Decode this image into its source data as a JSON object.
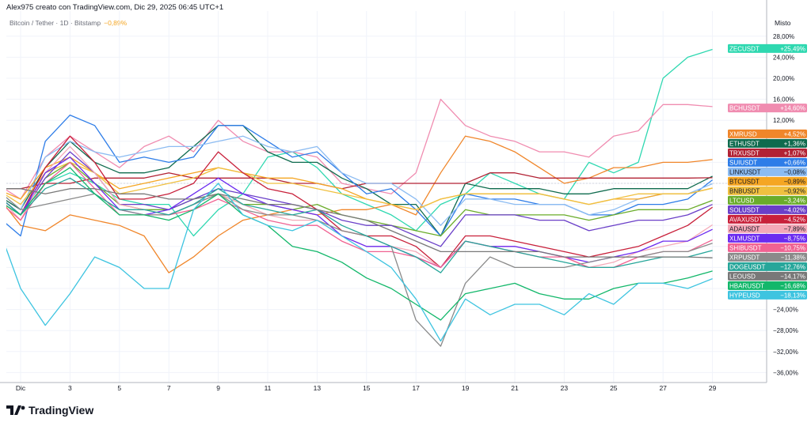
{
  "header": {
    "title": "Alex975 creato con TradingView.com, Dic 29, 2025 06:45 UTC+1",
    "symbol": "Bitcoin / Tether · 1D · Bitstamp",
    "change": "−0,89%"
  },
  "axis_mode": "Misto",
  "logo": "TradingView",
  "chart_data": {
    "type": "line",
    "x": [
      0,
      1,
      2,
      3,
      4,
      5,
      6,
      7,
      8,
      9,
      10,
      11,
      12,
      13,
      14,
      15,
      16,
      17,
      18,
      19,
      20,
      21,
      22,
      23,
      24,
      25,
      26,
      27,
      28,
      29
    ],
    "xtick_labels": [
      {
        "day": 1,
        "label": "Dic"
      },
      {
        "day": 3,
        "label": "3"
      },
      {
        "day": 5,
        "label": "5"
      },
      {
        "day": 7,
        "label": "7"
      },
      {
        "day": 9,
        "label": "9"
      },
      {
        "day": 11,
        "label": "11"
      },
      {
        "day": 13,
        "label": "13"
      },
      {
        "day": 15,
        "label": "15"
      },
      {
        "day": 17,
        "label": "17"
      },
      {
        "day": 19,
        "label": "19"
      },
      {
        "day": 21,
        "label": "21"
      },
      {
        "day": 23,
        "label": "23"
      },
      {
        "day": 25,
        "label": "25"
      },
      {
        "day": 27,
        "label": "27"
      },
      {
        "day": 29,
        "label": "29"
      }
    ],
    "ylim": [
      -38,
      30
    ],
    "yticks": [
      28,
      24,
      20,
      16,
      12,
      8,
      4,
      0,
      -4,
      -8,
      -12,
      -16,
      -20,
      -24,
      -28,
      -32,
      -36
    ],
    "ytick_labels": [
      "28,00%",
      "24,00%",
      "20,00%",
      "16,00%",
      "12,00%",
      "",
      "",
      "",
      "",
      "",
      "",
      "",
      "",
      "−24,00%",
      "−28,00%",
      "−32,00%",
      "−36,00%"
    ],
    "grid": true,
    "series": [
      {
        "name": "ZECUSDT",
        "label": "+25,49%",
        "color": "#2ed8b0",
        "values": [
          -3,
          -6,
          0,
          2,
          0,
          -3,
          -4,
          -4,
          -10,
          -5,
          -2,
          5,
          6,
          3,
          -2,
          -4,
          -6,
          -9,
          -4,
          -2,
          2,
          0,
          -2,
          -3,
          4,
          2,
          4,
          20,
          24,
          25.49
        ]
      },
      {
        "name": "BCHUSDT",
        "label": "+14,60%",
        "color": "#f08cb0",
        "values": [
          0,
          -3,
          5,
          9,
          6,
          3,
          7,
          9,
          6,
          12,
          8,
          6,
          6,
          5,
          0,
          -1,
          -2,
          2,
          16,
          11,
          9,
          8,
          6,
          6,
          5,
          9,
          10,
          15,
          15,
          14.6
        ]
      },
      {
        "name": "XMRUSD",
        "label": "+4,52%",
        "color": "#f0862a",
        "values": [
          -2,
          -8,
          -9,
          -6,
          -7,
          -8,
          -10,
          -17,
          -14,
          -10,
          -7,
          -6,
          -5,
          -6,
          -5,
          -5,
          -4,
          -6,
          2,
          9,
          8,
          6,
          3,
          0,
          1,
          3,
          3,
          4,
          4,
          4.52
        ]
      },
      {
        "name": "ETHUSDT",
        "label": "+1,36%",
        "color": "#0f6b4e",
        "values": [
          -2,
          -5,
          3,
          8,
          4,
          2,
          2,
          3,
          7,
          11,
          11,
          6,
          4,
          4,
          1,
          -1,
          -4,
          -4,
          -10,
          0,
          -1,
          -1,
          -1,
          -2,
          -2,
          -1,
          -1,
          -1,
          -1,
          1.36
        ]
      },
      {
        "name": "TRXUSDT",
        "label": "+1,07%",
        "color": "#b22234",
        "values": [
          -1,
          -1,
          0,
          0,
          1,
          1,
          1,
          2,
          1,
          1,
          1,
          1,
          0,
          0,
          -1,
          0,
          0,
          0,
          0,
          0,
          2,
          2,
          1,
          1,
          1,
          1,
          1,
          1,
          1,
          1.07
        ]
      },
      {
        "name": "SUIUSDT",
        "label": "+0,66%",
        "color": "#2e7de8",
        "values": [
          -6,
          -10,
          8,
          13,
          11,
          4,
          5,
          4,
          5,
          11,
          11,
          8,
          5,
          6,
          2,
          -2,
          -1,
          -5,
          -10,
          -2,
          -3,
          -3,
          -4,
          -4,
          -6,
          -6,
          -4,
          -4,
          -3,
          0.66
        ]
      },
      {
        "name": "LINKUSDT",
        "label": "−0,08%",
        "color": "#8cbcf2",
        "values": [
          -1,
          -5,
          5,
          8,
          6,
          5,
          6,
          7,
          7,
          8,
          9,
          7,
          6,
          7,
          2,
          0,
          0,
          -3,
          -8,
          -3,
          -3,
          -4,
          -4,
          -4,
          -6,
          -5,
          -3,
          -2,
          -2,
          -0.08
        ]
      },
      {
        "name": "BTCUSDT",
        "label": "−0,89%",
        "color": "#f5a623",
        "values": [
          -1,
          -3,
          3,
          5,
          2,
          -1,
          0,
          1,
          2,
          3,
          2,
          1,
          1,
          0,
          -1,
          -3,
          -4,
          -5,
          -3,
          -2,
          -2,
          -2,
          -2,
          -3,
          -4,
          -3,
          -3,
          -2,
          -2,
          -0.89
        ]
      },
      {
        "name": "BNBUSDT",
        "label": "−0,92%",
        "color": "#f0c040",
        "values": [
          -1,
          -4,
          2,
          4,
          2,
          -2,
          -1,
          0,
          1,
          3,
          2,
          0,
          0,
          -1,
          -2,
          -3,
          -4,
          -5,
          -3,
          -2,
          -2,
          -2,
          -2,
          -3,
          -4,
          -3,
          -2,
          -2,
          -2,
          -0.92
        ]
      },
      {
        "name": "LTCUSD",
        "label": "−3,24%",
        "color": "#6aac2a",
        "values": [
          -2,
          -6,
          1,
          4,
          0,
          -4,
          -5,
          -5,
          -3,
          -2,
          -4,
          -4,
          -5,
          -4,
          -6,
          -7,
          -8,
          -9,
          -10,
          -5,
          -6,
          -6,
          -6,
          -6,
          -7,
          -6,
          -5,
          -5,
          -5,
          -3.24
        ]
      },
      {
        "name": "SOLUSDT",
        "label": "−4,02%",
        "color": "#6a3fc8",
        "values": [
          -2,
          -6,
          1,
          6,
          2,
          -4,
          -4,
          -5,
          -3,
          -1,
          -2,
          -3,
          -4,
          -5,
          -7,
          -8,
          -8,
          -10,
          -12,
          -6,
          -6,
          -6,
          -7,
          -7,
          -9,
          -8,
          -7,
          -7,
          -6,
          -4.02
        ]
      },
      {
        "name": "AVAXUSDT",
        "label": "−4,52%",
        "color": "#c8203a",
        "values": [
          -2,
          -6,
          3,
          9,
          4,
          -3,
          -3,
          -2,
          0,
          6,
          2,
          -1,
          -2,
          -5,
          -9,
          -10,
          -10,
          -12,
          -16,
          -10,
          -10,
          -11,
          -12,
          -13,
          -14,
          -13,
          -12,
          -10,
          -8,
          -4.52
        ]
      },
      {
        "name": "ADAUSDT",
        "label": "−7,89%",
        "color": "#f4a9b8",
        "values": [
          -2,
          -7,
          2,
          7,
          2,
          -4,
          -5,
          -6,
          -4,
          -2,
          -4,
          -6,
          -7,
          -7,
          -10,
          -12,
          -12,
          -13,
          -16,
          -11,
          -12,
          -12,
          -13,
          -14,
          -16,
          -15,
          -13,
          -12,
          -11,
          -7.89
        ]
      },
      {
        "name": "XLMUSDT",
        "label": "−8,75%",
        "color": "#6b2bf0",
        "values": [
          -2,
          -6,
          2,
          5,
          0,
          -5,
          -6,
          -5,
          -2,
          1,
          -2,
          -4,
          -5,
          -6,
          -10,
          -12,
          -12,
          -14,
          -16,
          -11,
          -12,
          -12,
          -13,
          -14,
          -15,
          -14,
          -13,
          -11,
          -11,
          -8.75
        ]
      },
      {
        "name": "SHIBUSDT",
        "label": "−10,75%",
        "color": "#f06292",
        "values": [
          -3,
          -7,
          0,
          4,
          -1,
          -6,
          -6,
          -6,
          -5,
          -3,
          -5,
          -7,
          -8,
          -8,
          -11,
          -13,
          -13,
          -14,
          -16,
          -11,
          -12,
          -13,
          -14,
          -14,
          -16,
          -16,
          -14,
          -13,
          -13,
          -10.75
        ]
      },
      {
        "name": "XRPUSDT",
        "label": "−11,38%",
        "color": "#8a8a8a",
        "values": [
          -1,
          -5,
          -4,
          -3,
          -2,
          -5,
          -6,
          -6,
          -4,
          -2,
          -5,
          -6,
          -6,
          -7,
          -9,
          -10,
          -12,
          -26,
          -31,
          -19,
          -14,
          -16,
          -16,
          -16,
          -15,
          -14,
          -14,
          -13,
          -13,
          -11.38
        ]
      },
      {
        "name": "DOGEUSDT",
        "label": "−12,76%",
        "color": "#26a69a",
        "values": [
          -2,
          -6,
          -1,
          1,
          -2,
          -5,
          -5,
          -6,
          -4,
          -1,
          -4,
          -5,
          -6,
          -5,
          -8,
          -10,
          -12,
          -14,
          -17,
          -11,
          -12,
          -13,
          -14,
          -15,
          -16,
          -16,
          -15,
          -14,
          -14,
          -12.76
        ]
      },
      {
        "name": "LEOUSD",
        "label": "−14,17%",
        "color": "#787878",
        "values": [
          -1,
          -1,
          -2,
          -1,
          -1,
          -2,
          -2,
          -3,
          -3,
          -2,
          -3,
          -4,
          -4,
          -5,
          -6,
          -7,
          -9,
          -11,
          -13,
          -13,
          -13,
          -13,
          -13,
          -14,
          -14,
          -14,
          -14,
          -14,
          -14,
          -14.17
        ]
      },
      {
        "name": "HBARUSDT",
        "label": "−16,68%",
        "color": "#12b76a",
        "values": [
          -3,
          -6,
          0,
          3,
          -2,
          -6,
          -6,
          -7,
          -5,
          -2,
          -6,
          -8,
          -12,
          -13,
          -15,
          -18,
          -20,
          -23,
          -26,
          -21,
          -20,
          -19,
          -21,
          -22,
          -22,
          -20,
          -19,
          -19,
          -18,
          -16.68
        ]
      },
      {
        "name": "HYPEUSD",
        "label": "−18,13%",
        "color": "#3ec4e0",
        "values": [
          -7,
          -20,
          -27,
          -21,
          -14,
          -16,
          -20,
          -20,
          -5,
          0,
          -6,
          -8,
          -9,
          -7,
          -10,
          -13,
          -16,
          -22,
          -30,
          -22,
          -25,
          -23,
          -23,
          -25,
          -21,
          -23,
          -19,
          -19,
          -20,
          -18.13
        ]
      }
    ]
  }
}
